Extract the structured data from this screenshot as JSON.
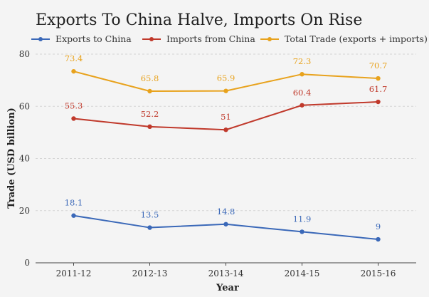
{
  "chart_data": {
    "type": "line",
    "title": "Exports To China Halve, Imports On Rise",
    "xlabel": "Year",
    "ylabel": "Trade (USD billion)",
    "categories": [
      "2011-12",
      "2012-13",
      "2013-14",
      "2014-15",
      "2015-16"
    ],
    "ylim": [
      0,
      80
    ],
    "yticks": [
      0,
      20,
      40,
      60,
      80
    ],
    "grid": true,
    "legend_position": "top",
    "series": [
      {
        "name": "Exports to China",
        "color": "#3a68b8",
        "values": [
          18.1,
          13.5,
          14.8,
          11.9,
          9
        ],
        "labels": [
          "18.1",
          "13.5",
          "14.8",
          "11.9",
          "9"
        ]
      },
      {
        "name": "Imports from China",
        "color": "#c0392b",
        "values": [
          55.3,
          52.2,
          51,
          60.4,
          61.7
        ],
        "labels": [
          "55.3",
          "52.2",
          "51",
          "60.4",
          "61.7"
        ]
      },
      {
        "name": "Total Trade (exports + imports)",
        "color": "#e8a21c",
        "values": [
          73.4,
          65.8,
          65.9,
          72.3,
          70.7
        ],
        "labels": [
          "73.4",
          "65.8",
          "65.9",
          "72.3",
          "70.7"
        ]
      }
    ]
  }
}
